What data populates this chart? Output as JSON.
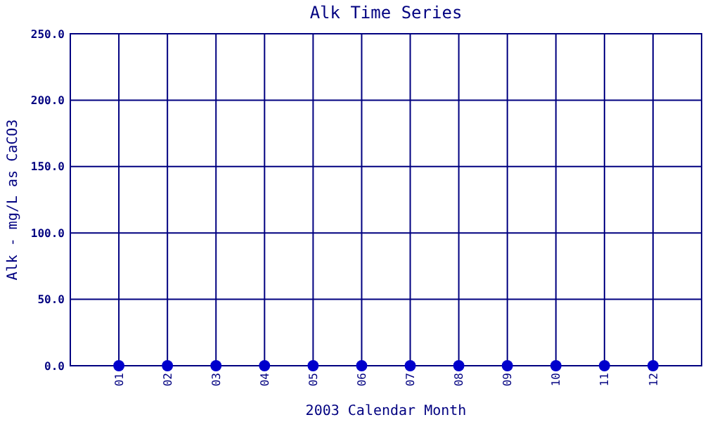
{
  "chart_data": {
    "type": "scatter",
    "title": "Alk Time Series",
    "xlabel": "2003 Calendar Month",
    "ylabel": "Alk - mg/L as CaCO3",
    "categories": [
      "01",
      "02",
      "03",
      "04",
      "05",
      "06",
      "07",
      "08",
      "09",
      "10",
      "11",
      "12"
    ],
    "series": [
      {
        "color": "#0000cc",
        "values": [
          0,
          0,
          0,
          0,
          0,
          0,
          0,
          0,
          0,
          0,
          0,
          0
        ]
      }
    ],
    "ylim": [
      0,
      250
    ],
    "yticks": [
      {
        "value": 0,
        "label": "0.0"
      },
      {
        "value": 50,
        "label": "50.0"
      },
      {
        "value": 100,
        "label": "100.0"
      },
      {
        "value": 150,
        "label": "150.0"
      },
      {
        "value": 200,
        "label": "200.0"
      },
      {
        "value": 250,
        "label": "250.0"
      }
    ],
    "grid": true,
    "marker": "circle"
  }
}
